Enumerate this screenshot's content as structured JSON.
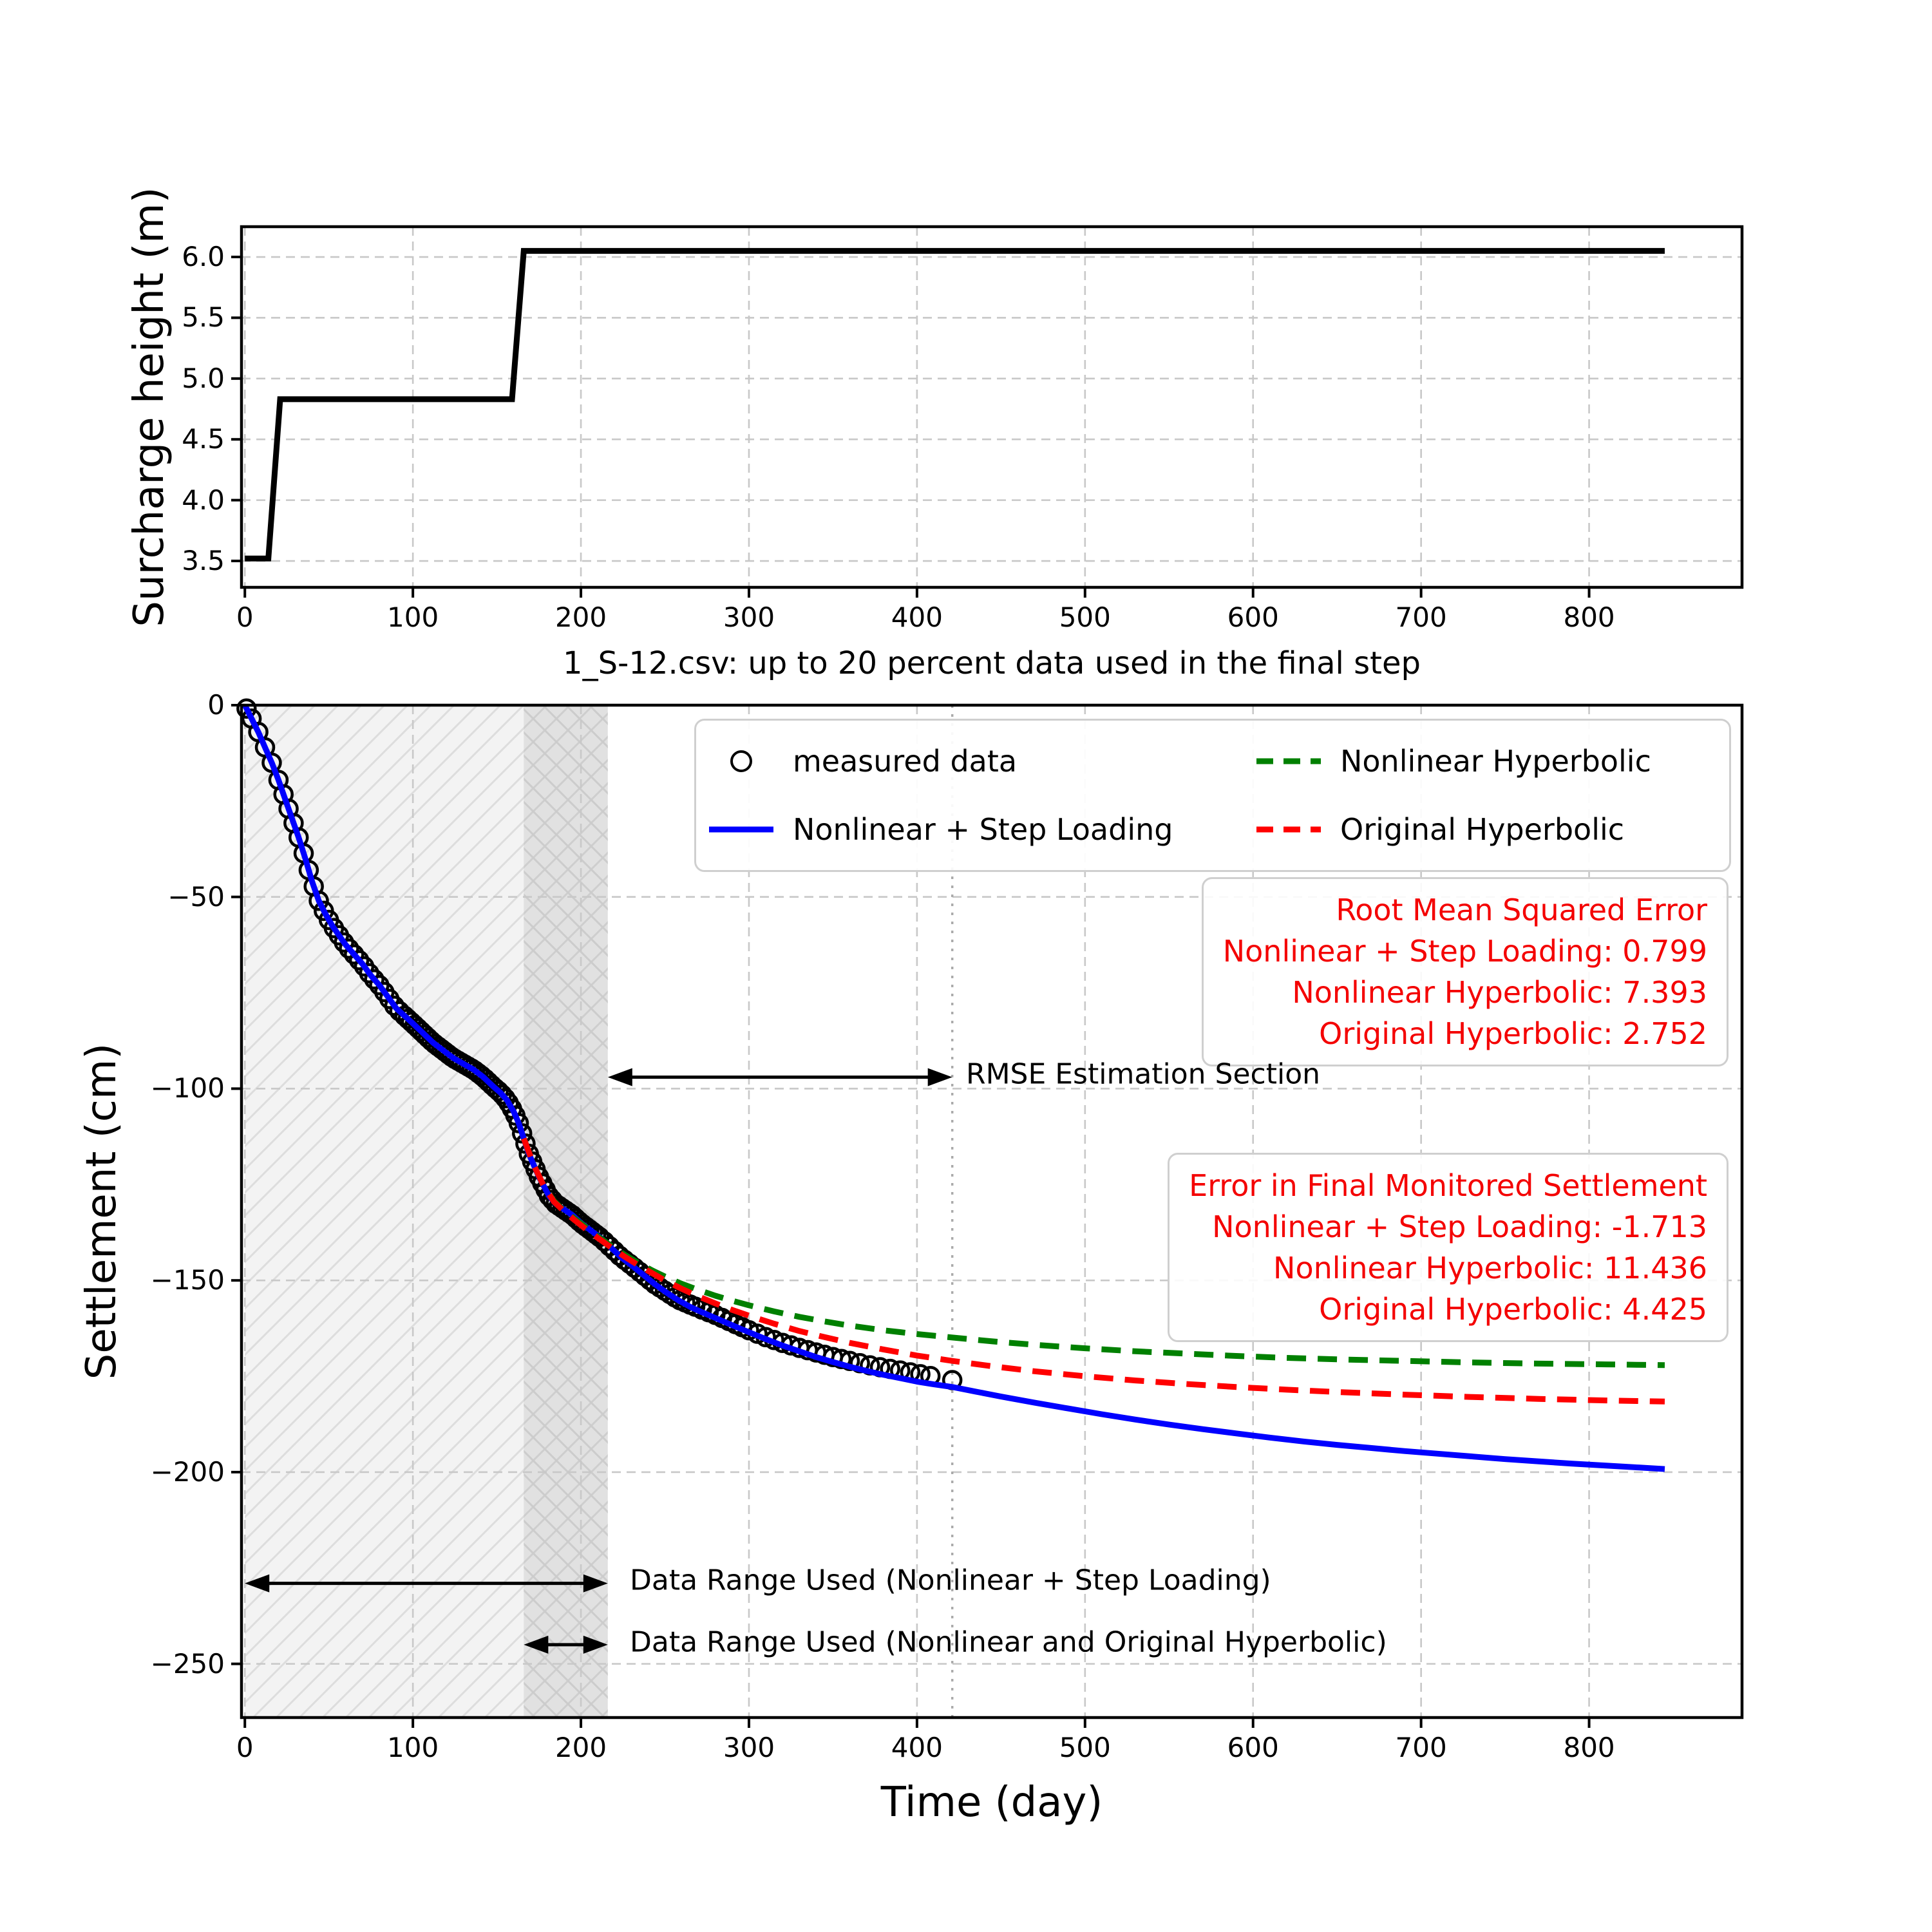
{
  "chart_data": [
    {
      "id": "surcharge",
      "type": "line",
      "title": "",
      "xlabel": "",
      "ylabel": "Surcharge height (m)",
      "xlim": [
        -2,
        891
      ],
      "ylim": [
        3.283,
        6.249
      ],
      "xticks": [
        0,
        100,
        200,
        300,
        400,
        500,
        600,
        700,
        800
      ],
      "xtick_labels": [
        "0",
        "100",
        "200",
        "300",
        "400",
        "500",
        "600",
        "700",
        "800"
      ],
      "yticks": [
        3.5,
        4.0,
        4.5,
        5.0,
        5.5,
        6.0
      ],
      "ytick_labels": [
        "3.5",
        "4.0",
        "4.5",
        "5.0",
        "5.5",
        "6.0"
      ],
      "grid": true,
      "series": [
        {
          "name": "surcharge-height",
          "color": "#000000",
          "style": "solid",
          "width": 9,
          "points": [
            [
              0,
              3.52
            ],
            [
              14,
              3.52
            ],
            [
              21,
              4.83
            ],
            [
              159,
              4.83
            ],
            [
              166,
              6.05
            ],
            [
              845,
              6.05
            ]
          ]
        }
      ]
    },
    {
      "id": "settlement",
      "type": "line+scatter",
      "title": "1_S-12.csv: up to 20 percent data used in the final step",
      "xlabel": "Time (day)",
      "ylabel": "Settlement (cm)",
      "xlim": [
        -2,
        891
      ],
      "ylim": [
        -264,
        0
      ],
      "xticks": [
        0,
        100,
        200,
        300,
        400,
        500,
        600,
        700,
        800
      ],
      "xtick_labels": [
        "0",
        "100",
        "200",
        "300",
        "400",
        "500",
        "600",
        "700",
        "800"
      ],
      "yticks": [
        0,
        -50,
        -100,
        -150,
        -200,
        -250
      ],
      "ytick_labels": [
        "0",
        "−50",
        "−100",
        "−150",
        "−200",
        "−250"
      ],
      "grid": true,
      "measured": {
        "label": "measured data",
        "marker": "circle",
        "color": "#000000",
        "final_point": [
          421,
          -176
        ],
        "anchors": [
          [
            0,
            0
          ],
          [
            4,
            -3.5
          ],
          [
            8,
            -7
          ],
          [
            12,
            -11
          ],
          [
            16,
            -15
          ],
          [
            20,
            -19.5
          ],
          [
            24,
            -24.5
          ],
          [
            28,
            -29.5
          ],
          [
            32,
            -34.5
          ],
          [
            36,
            -40
          ],
          [
            40,
            -46
          ],
          [
            44,
            -51
          ],
          [
            48,
            -54.5
          ],
          [
            52,
            -57.5
          ],
          [
            56,
            -60
          ],
          [
            60,
            -62.5
          ],
          [
            65,
            -65
          ],
          [
            70,
            -67.5
          ],
          [
            75,
            -70.5
          ],
          [
            80,
            -73
          ],
          [
            85,
            -76
          ],
          [
            90,
            -79
          ],
          [
            95,
            -81
          ],
          [
            100,
            -83
          ],
          [
            106,
            -85.5
          ],
          [
            112,
            -88
          ],
          [
            118,
            -90
          ],
          [
            124,
            -92
          ],
          [
            130,
            -93.5
          ],
          [
            136,
            -95
          ],
          [
            142,
            -97
          ],
          [
            148,
            -99.5
          ],
          [
            152,
            -101
          ],
          [
            156,
            -103
          ],
          [
            160,
            -106
          ],
          [
            163,
            -109
          ],
          [
            166,
            -113
          ],
          [
            169,
            -117
          ],
          [
            172,
            -120
          ],
          [
            175,
            -123
          ],
          [
            178,
            -125.5
          ],
          [
            181,
            -128
          ],
          [
            185,
            -130
          ],
          [
            190,
            -131.5
          ],
          [
            195,
            -133
          ],
          [
            200,
            -135
          ],
          [
            206,
            -137
          ],
          [
            212,
            -139
          ],
          [
            218,
            -141.5
          ],
          [
            224,
            -144
          ],
          [
            230,
            -146
          ],
          [
            237,
            -148.5
          ],
          [
            244,
            -151
          ],
          [
            251,
            -153
          ],
          [
            258,
            -155
          ],
          [
            265,
            -156.3
          ],
          [
            272,
            -157.6
          ],
          [
            280,
            -159
          ],
          [
            290,
            -161
          ],
          [
            300,
            -163
          ],
          [
            310,
            -164.8
          ],
          [
            320,
            -166.3
          ],
          [
            330,
            -167.6
          ],
          [
            340,
            -168.8
          ],
          [
            350,
            -170
          ],
          [
            360,
            -171
          ],
          [
            370,
            -172
          ],
          [
            380,
            -172.8
          ],
          [
            390,
            -173.5
          ],
          [
            400,
            -174.3
          ],
          [
            410,
            -175.1
          ],
          [
            421,
            -176
          ]
        ],
        "marker_days": [
          1,
          4,
          8,
          12,
          16,
          20,
          23,
          26,
          29,
          32,
          35,
          38,
          41,
          44,
          47,
          50,
          53,
          56,
          59,
          62,
          65,
          68,
          71,
          74,
          77,
          80,
          83,
          86,
          89,
          92,
          95,
          97,
          99,
          101,
          103,
          105,
          107,
          109,
          111,
          113,
          115,
          117,
          119,
          121,
          123,
          125,
          127,
          129,
          131,
          133,
          135,
          137,
          139,
          141,
          143,
          145,
          147,
          149,
          151,
          153,
          155,
          157,
          159,
          161,
          163,
          165,
          167,
          169,
          171,
          173,
          175,
          177,
          179,
          181,
          183,
          185,
          187,
          189,
          191,
          193,
          195,
          197,
          199,
          201,
          203,
          205,
          207,
          209,
          211,
          214,
          217,
          220,
          223,
          226,
          229,
          232,
          235,
          238,
          241,
          244,
          247,
          250,
          253,
          256,
          259,
          262,
          265,
          268,
          272,
          276,
          280,
          284,
          288,
          292,
          296,
          300,
          305,
          310,
          315,
          320,
          325,
          330,
          335,
          340,
          345,
          350,
          355,
          360,
          366,
          372,
          378,
          384,
          390,
          396,
          402,
          408,
          421
        ]
      },
      "series": [
        {
          "name": "nonlinear-step-loading",
          "label": "Nonlinear + Step Loading",
          "color": "#0000ff",
          "style": "solid",
          "width": 9,
          "follows_measured_until": 244,
          "points": [
            [
              251,
              -153.2
            ],
            [
              258,
              -155.2
            ],
            [
              265,
              -156.9
            ],
            [
              272,
              -158.3
            ],
            [
              280,
              -159.8
            ],
            [
              290,
              -161.7
            ],
            [
              300,
              -163.5
            ],
            [
              310,
              -165.3
            ],
            [
              320,
              -167
            ],
            [
              330,
              -168.5
            ],
            [
              340,
              -170
            ],
            [
              350,
              -171.3
            ],
            [
              360,
              -172.5
            ],
            [
              370,
              -173.6
            ],
            [
              380,
              -174.6
            ],
            [
              390,
              -175.5
            ],
            [
              400,
              -176.4
            ],
            [
              410,
              -177.1
            ],
            [
              421,
              -177.8
            ],
            [
              435,
              -179
            ],
            [
              450,
              -180.3
            ],
            [
              470,
              -181.9
            ],
            [
              490,
              -183.4
            ],
            [
              510,
              -184.9
            ],
            [
              530,
              -186.3
            ],
            [
              550,
              -187.6
            ],
            [
              570,
              -188.8
            ],
            [
              590,
              -189.9
            ],
            [
              610,
              -191
            ],
            [
              630,
              -192
            ],
            [
              650,
              -192.9
            ],
            [
              670,
              -193.7
            ],
            [
              690,
              -194.5
            ],
            [
              710,
              -195.2
            ],
            [
              730,
              -195.9
            ],
            [
              750,
              -196.6
            ],
            [
              770,
              -197.2
            ],
            [
              790,
              -197.8
            ],
            [
              810,
              -198.3
            ],
            [
              830,
              -198.8
            ],
            [
              845,
              -199.2
            ]
          ]
        },
        {
          "name": "nonlinear-hyperbolic",
          "label": "Nonlinear Hyperbolic",
          "color": "#008000",
          "style": "dashed",
          "width": 9,
          "points": [
            [
              166,
              -113
            ],
            [
              172,
              -120
            ],
            [
              178,
              -125.5
            ],
            [
              184,
              -129.3
            ],
            [
              190,
              -131.8
            ],
            [
              196,
              -133.8
            ],
            [
              202,
              -135.8
            ],
            [
              210,
              -138.5
            ],
            [
              218,
              -141
            ],
            [
              226,
              -143.3
            ],
            [
              234,
              -145.4
            ],
            [
              242,
              -147.3
            ],
            [
              250,
              -149
            ],
            [
              260,
              -150.9
            ],
            [
              270,
              -152.5
            ],
            [
              280,
              -154
            ],
            [
              290,
              -155.3
            ],
            [
              300,
              -156.5
            ],
            [
              315,
              -158.1
            ],
            [
              330,
              -159.5
            ],
            [
              345,
              -160.7
            ],
            [
              360,
              -161.8
            ],
            [
              380,
              -163
            ],
            [
              400,
              -164
            ],
            [
              421,
              -164.9
            ],
            [
              445,
              -165.9
            ],
            [
              470,
              -166.8
            ],
            [
              500,
              -167.7
            ],
            [
              530,
              -168.5
            ],
            [
              560,
              -169.1
            ],
            [
              590,
              -169.7
            ],
            [
              620,
              -170.2
            ],
            [
              650,
              -170.6
            ],
            [
              690,
              -171
            ],
            [
              730,
              -171.4
            ],
            [
              770,
              -171.7
            ],
            [
              810,
              -171.9
            ],
            [
              845,
              -172.1
            ]
          ]
        },
        {
          "name": "original-hyperbolic",
          "label": "Original Hyperbolic",
          "color": "#ff0000",
          "style": "dashed",
          "width": 9,
          "points": [
            [
              166,
              -113
            ],
            [
              172,
              -120
            ],
            [
              178,
              -125.5
            ],
            [
              184,
              -129.5
            ],
            [
              190,
              -132
            ],
            [
              196,
              -134.2
            ],
            [
              202,
              -136.3
            ],
            [
              210,
              -138.9
            ],
            [
              218,
              -141.4
            ],
            [
              226,
              -143.8
            ],
            [
              234,
              -146
            ],
            [
              242,
              -148
            ],
            [
              250,
              -150
            ],
            [
              260,
              -152.2
            ],
            [
              270,
              -154.2
            ],
            [
              280,
              -156
            ],
            [
              290,
              -157.7
            ],
            [
              300,
              -159.2
            ],
            [
              315,
              -161.3
            ],
            [
              330,
              -163.2
            ],
            [
              345,
              -164.8
            ],
            [
              360,
              -166.3
            ],
            [
              380,
              -168
            ],
            [
              400,
              -169.6
            ],
            [
              421,
              -171
            ],
            [
              445,
              -172.4
            ],
            [
              470,
              -173.7
            ],
            [
              500,
              -175
            ],
            [
              530,
              -176.1
            ],
            [
              560,
              -177
            ],
            [
              590,
              -177.8
            ],
            [
              620,
              -178.5
            ],
            [
              650,
              -179.1
            ],
            [
              690,
              -179.8
            ],
            [
              730,
              -180.4
            ],
            [
              770,
              -180.9
            ],
            [
              810,
              -181.3
            ],
            [
              845,
              -181.6
            ]
          ]
        }
      ],
      "regions": [
        {
          "name": "data-range-step-loading",
          "x0": 0,
          "x1": 216,
          "fill": "#f3f3f3",
          "hatch": "/",
          "hatch_color": "#dddddd"
        },
        {
          "name": "data-range-hyperbolic",
          "x0": 166,
          "x1": 216,
          "fill": "rgba(120,120,120,0.14)",
          "hatch": "\\",
          "hatch_color": "#cccccc"
        }
      ],
      "vline": {
        "x": 421,
        "style": "dotted",
        "color": "#aaaaaa"
      },
      "arrows": [
        {
          "label": "RMSE Estimation Section",
          "x0": 216,
          "x1": 421,
          "y": -97,
          "label_x": 428,
          "font": 44
        },
        {
          "label": "Data Range Used (Nonlinear + Step Loading)",
          "x0": 0,
          "x1": 216,
          "y": -229,
          "label_x": 228,
          "font": 44
        },
        {
          "label": "Data Range Used (Nonlinear and Original Hyperbolic)",
          "x0": 166,
          "x1": 216,
          "y": -245,
          "label_x": 228,
          "font": 44
        }
      ],
      "rmse_box": {
        "color": "#f40000",
        "lines": [
          "Root Mean Squared Error",
          "Nonlinear + Step Loading: 0.799",
          "Nonlinear Hyperbolic: 7.393",
          "Original Hyperbolic: 2.752"
        ]
      },
      "error_box": {
        "color": "#f40000",
        "lines": [
          "Error in Final Monitored Settlement",
          "Nonlinear + Step Loading: -1.713",
          "Nonlinear Hyperbolic: 11.436",
          "Original Hyperbolic: 4.425"
        ]
      },
      "legend": {
        "items": [
          {
            "label": "measured data",
            "type": "circle",
            "color": "#000000"
          },
          {
            "label": "Nonlinear + Step Loading",
            "type": "solid-line",
            "color": "#0000ff"
          },
          {
            "label": "Nonlinear Hyperbolic",
            "type": "dashed-line",
            "color": "#008000"
          },
          {
            "label": "Original Hyperbolic",
            "type": "dashed-line",
            "color": "#ff0000"
          }
        ]
      }
    }
  ],
  "style": {
    "grid_color": "#c8c8c8",
    "spine_color": "#000000",
    "background": "#ffffff"
  }
}
